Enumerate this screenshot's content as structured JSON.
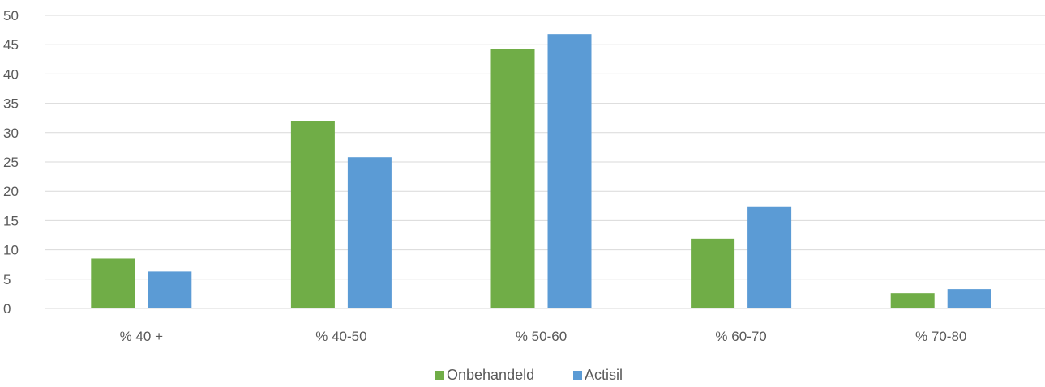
{
  "chart_data": {
    "type": "bar",
    "title": "",
    "xlabel": "",
    "ylabel": "",
    "categories": [
      "% 40 +",
      "% 40-50",
      "% 50-60",
      "% 60-70",
      "% 70-80"
    ],
    "series": [
      {
        "name": "Onbehandeld",
        "color": "#70ad47",
        "values": [
          8.5,
          32,
          44.2,
          11.9,
          2.6
        ]
      },
      {
        "name": "Actisil",
        "color": "#5b9bd5",
        "values": [
          6.3,
          25.8,
          46.8,
          17.3,
          3.3
        ]
      }
    ],
    "ylim": [
      0,
      50
    ],
    "yticks": [
      0,
      5,
      10,
      15,
      20,
      25,
      30,
      35,
      40,
      45,
      50
    ],
    "grid": true,
    "legend_position": "bottom"
  }
}
